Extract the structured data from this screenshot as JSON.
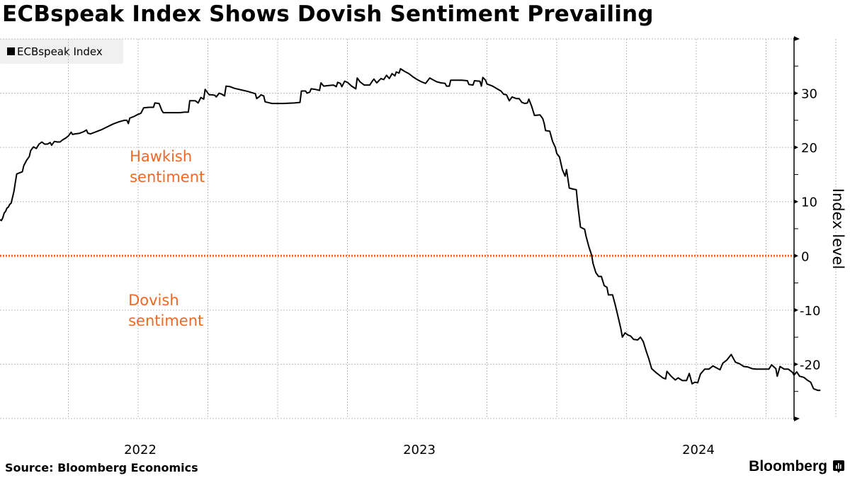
{
  "header": {
    "title": "ECBspeak Index Shows Dovish Sentiment Prevailing"
  },
  "legend": {
    "items": [
      {
        "label": "ECBspeak Index",
        "color": "#000000"
      }
    ]
  },
  "footer": {
    "source": "Source: Bloomberg Economics",
    "brand": "Bloomberg",
    "brand_icon": "bloomberg-terminal-icon"
  },
  "colors": {
    "line": "#000000",
    "zero_line": "#f26822",
    "annotation": "#f26822",
    "grid": "#bdbdbd"
  },
  "chart_data": {
    "type": "line",
    "title": "ECBspeak Index Shows Dovish Sentiment Prevailing",
    "xlabel": "",
    "ylabel": "Index level",
    "x_unit": "year (decimal)",
    "xlim": [
      2021.505,
      2024.79
    ],
    "ylim": [
      -30,
      40
    ],
    "x_ticks": [
      {
        "value": 2022.5,
        "label": "2022",
        "anchor": 2022.0
      },
      {
        "value": 2023.5,
        "label": "2023",
        "anchor": 2023.0
      },
      {
        "value": 2024.5,
        "label": "2024",
        "anchor": 2024.0
      }
    ],
    "x_grid": [
      2021.75,
      2022.0,
      2022.25,
      2022.5,
      2022.75,
      2023.0,
      2023.25,
      2023.5,
      2023.75,
      2024.0,
      2024.25,
      2024.5
    ],
    "y_ticks": [
      {
        "value": 30,
        "label": "30"
      },
      {
        "value": 20,
        "label": "20"
      },
      {
        "value": 10,
        "label": "10"
      },
      {
        "value": 0,
        "label": "0"
      },
      {
        "value": -10,
        "label": "-10"
      },
      {
        "value": -20,
        "label": "-20"
      }
    ],
    "y_minor_ticks": [
      35,
      25,
      15,
      5,
      -5,
      -15,
      -25
    ],
    "grid": true,
    "legend_position": "top-left",
    "reference_lines": [
      {
        "y": 0,
        "style": "dotted",
        "color": "#f26822"
      }
    ],
    "annotations": [
      {
        "lines": [
          "Hawkish",
          "sentiment"
        ],
        "x": 2021.985,
        "y": 15.3
      },
      {
        "lines": [
          "Dovish",
          "sentiment"
        ],
        "x": 2021.98,
        "y": -11.2
      }
    ],
    "series": [
      {
        "name": "ECBspeak Index",
        "points": [
          [
            2021.505,
            6.7
          ],
          [
            2021.51,
            6.5
          ],
          [
            2021.515,
            7.0
          ],
          [
            2021.52,
            7.9
          ],
          [
            2021.525,
            8.2
          ],
          [
            2021.53,
            8.8
          ],
          [
            2021.535,
            9.0
          ],
          [
            2021.54,
            9.5
          ],
          [
            2021.545,
            9.7
          ],
          [
            2021.55,
            10.8
          ],
          [
            2021.555,
            11.9
          ],
          [
            2021.56,
            13.5
          ],
          [
            2021.565,
            15.1
          ],
          [
            2021.575,
            15.3
          ],
          [
            2021.585,
            15.5
          ],
          [
            2021.59,
            16.6
          ],
          [
            2021.6,
            17.6
          ],
          [
            2021.61,
            18.3
          ],
          [
            2021.615,
            19.4
          ],
          [
            2021.625,
            20.1
          ],
          [
            2021.635,
            19.8
          ],
          [
            2021.645,
            20.6
          ],
          [
            2021.655,
            21.0
          ],
          [
            2021.665,
            20.6
          ],
          [
            2021.675,
            20.6
          ],
          [
            2021.685,
            20.9
          ],
          [
            2021.69,
            20.4
          ],
          [
            2021.7,
            21.1
          ],
          [
            2021.71,
            21.0
          ],
          [
            2021.72,
            21.0
          ],
          [
            2021.73,
            21.4
          ],
          [
            2021.74,
            21.7
          ],
          [
            2021.75,
            22.1
          ],
          [
            2021.76,
            22.8
          ],
          [
            2021.765,
            22.4
          ],
          [
            2021.775,
            22.5
          ],
          [
            2021.79,
            22.6
          ],
          [
            2021.805,
            22.9
          ],
          [
            2021.815,
            23.2
          ],
          [
            2021.82,
            22.6
          ],
          [
            2021.83,
            22.5
          ],
          [
            2021.85,
            22.9
          ],
          [
            2021.87,
            23.3
          ],
          [
            2021.89,
            23.8
          ],
          [
            2021.91,
            24.3
          ],
          [
            2021.93,
            24.7
          ],
          [
            2021.95,
            25.0
          ],
          [
            2021.96,
            25.0
          ],
          [
            2021.965,
            24.4
          ],
          [
            2021.97,
            25.4
          ],
          [
            2021.985,
            25.7
          ],
          [
            2022.0,
            26.1
          ],
          [
            2022.01,
            26.3
          ],
          [
            2022.015,
            26.8
          ],
          [
            2022.02,
            27.3
          ],
          [
            2022.04,
            27.4
          ],
          [
            2022.055,
            27.4
          ],
          [
            2022.06,
            28.2
          ],
          [
            2022.075,
            28.1
          ],
          [
            2022.085,
            26.8
          ],
          [
            2022.09,
            26.4
          ],
          [
            2022.12,
            26.4
          ],
          [
            2022.15,
            26.4
          ],
          [
            2022.165,
            26.5
          ],
          [
            2022.18,
            26.5
          ],
          [
            2022.185,
            28.6
          ],
          [
            2022.205,
            28.6
          ],
          [
            2022.215,
            28.2
          ],
          [
            2022.225,
            29.2
          ],
          [
            2022.235,
            28.9
          ],
          [
            2022.24,
            30.7
          ],
          [
            2022.25,
            30.0
          ],
          [
            2022.255,
            29.7
          ],
          [
            2022.265,
            29.7
          ],
          [
            2022.275,
            29.6
          ],
          [
            2022.28,
            29.3
          ],
          [
            2022.29,
            30.0
          ],
          [
            2022.3,
            29.8
          ],
          [
            2022.31,
            29.5
          ],
          [
            2022.315,
            31.3
          ],
          [
            2022.33,
            31.2
          ],
          [
            2022.345,
            30.9
          ],
          [
            2022.37,
            30.6
          ],
          [
            2022.395,
            30.3
          ],
          [
            2022.42,
            29.9
          ],
          [
            2022.425,
            29.0
          ],
          [
            2022.435,
            29.4
          ],
          [
            2022.44,
            29.7
          ],
          [
            2022.45,
            29.5
          ],
          [
            2022.455,
            28.4
          ],
          [
            2022.48,
            28.1
          ],
          [
            2022.52,
            28.1
          ],
          [
            2022.56,
            28.2
          ],
          [
            2022.58,
            28.3
          ],
          [
            2022.585,
            30.4
          ],
          [
            2022.6,
            30.4
          ],
          [
            2022.605,
            30.0
          ],
          [
            2022.615,
            30.2
          ],
          [
            2022.62,
            30.8
          ],
          [
            2022.635,
            30.7
          ],
          [
            2022.65,
            30.5
          ],
          [
            2022.655,
            31.9
          ],
          [
            2022.665,
            31.3
          ],
          [
            2022.68,
            31.4
          ],
          [
            2022.7,
            31.5
          ],
          [
            2022.71,
            31.2
          ],
          [
            2022.715,
            32.0
          ],
          [
            2022.725,
            31.8
          ],
          [
            2022.73,
            31.2
          ],
          [
            2022.74,
            32.2
          ],
          [
            2022.75,
            32.0
          ],
          [
            2022.765,
            31.3
          ],
          [
            2022.78,
            30.8
          ],
          [
            2022.785,
            32.8
          ],
          [
            2022.795,
            32.1
          ],
          [
            2022.81,
            31.5
          ],
          [
            2022.83,
            31.5
          ],
          [
            2022.84,
            32.3
          ],
          [
            2022.845,
            32.6
          ],
          [
            2022.855,
            31.9
          ],
          [
            2022.87,
            32.7
          ],
          [
            2022.88,
            32.5
          ],
          [
            2022.89,
            33.3
          ],
          [
            2022.9,
            32.7
          ],
          [
            2022.91,
            33.6
          ],
          [
            2022.92,
            33.2
          ],
          [
            2022.925,
            33.9
          ],
          [
            2022.935,
            33.7
          ],
          [
            2022.94,
            34.5
          ],
          [
            2022.955,
            34.0
          ],
          [
            2022.97,
            33.6
          ],
          [
            2022.985,
            33.0
          ],
          [
            2023.0,
            32.5
          ],
          [
            2023.015,
            32.1
          ],
          [
            2023.03,
            31.8
          ],
          [
            2023.045,
            32.8
          ],
          [
            2023.055,
            32.5
          ],
          [
            2023.07,
            32.1
          ],
          [
            2023.085,
            31.9
          ],
          [
            2023.1,
            31.8
          ],
          [
            2023.105,
            31.3
          ],
          [
            2023.115,
            31.3
          ],
          [
            2023.12,
            32.4
          ],
          [
            2023.16,
            32.4
          ],
          [
            2023.18,
            32.3
          ],
          [
            2023.185,
            31.6
          ],
          [
            2023.2,
            31.5
          ],
          [
            2023.205,
            32.3
          ],
          [
            2023.225,
            32.2
          ],
          [
            2023.23,
            31.3
          ],
          [
            2023.235,
            32.9
          ],
          [
            2023.245,
            32.4
          ],
          [
            2023.25,
            31.7
          ],
          [
            2023.27,
            31.3
          ],
          [
            2023.29,
            30.7
          ],
          [
            2023.3,
            30.4
          ],
          [
            2023.31,
            29.8
          ],
          [
            2023.32,
            29.7
          ],
          [
            2023.33,
            28.6
          ],
          [
            2023.34,
            29.3
          ],
          [
            2023.355,
            29.0
          ],
          [
            2023.365,
            29.0
          ],
          [
            2023.375,
            28.3
          ],
          [
            2023.385,
            28.1
          ],
          [
            2023.395,
            28.2
          ],
          [
            2023.4,
            28.9
          ],
          [
            2023.41,
            27.6
          ],
          [
            2023.42,
            25.9
          ],
          [
            2023.44,
            26.0
          ],
          [
            2023.45,
            25.3
          ],
          [
            2023.455,
            24.4
          ],
          [
            2023.46,
            23.1
          ],
          [
            2023.475,
            23.0
          ],
          [
            2023.485,
            21.1
          ],
          [
            2023.495,
            20.0
          ],
          [
            2023.5,
            18.9
          ],
          [
            2023.51,
            18.2
          ],
          [
            2023.52,
            15.9
          ],
          [
            2023.53,
            14.7
          ],
          [
            2023.535,
            15.9
          ],
          [
            2023.545,
            12.5
          ],
          [
            2023.56,
            12.3
          ],
          [
            2023.57,
            12.2
          ],
          [
            2023.575,
            9.5
          ],
          [
            2023.585,
            5.3
          ],
          [
            2023.6,
            4.9
          ],
          [
            2023.605,
            3.6
          ],
          [
            2023.615,
            1.7
          ],
          [
            2023.625,
            0.1
          ],
          [
            2023.63,
            -1.4
          ],
          [
            2023.64,
            -3.1
          ],
          [
            2023.65,
            -3.8
          ],
          [
            2023.66,
            -3.8
          ],
          [
            2023.67,
            -5.5
          ],
          [
            2023.68,
            -5.8
          ],
          [
            2023.685,
            -7.2
          ],
          [
            2023.7,
            -7.2
          ],
          [
            2023.71,
            -9.1
          ],
          [
            2023.72,
            -11.3
          ],
          [
            2023.73,
            -13.5
          ],
          [
            2023.735,
            -15.0
          ],
          [
            2023.745,
            -14.2
          ],
          [
            2023.755,
            -14.6
          ],
          [
            2023.765,
            -14.8
          ],
          [
            2023.775,
            -15.4
          ],
          [
            2023.79,
            -15.5
          ],
          [
            2023.8,
            -15.0
          ],
          [
            2023.81,
            -15.8
          ],
          [
            2023.82,
            -17.5
          ],
          [
            2023.83,
            -19.0
          ],
          [
            2023.84,
            -20.8
          ],
          [
            2023.855,
            -21.5
          ],
          [
            2023.87,
            -22.1
          ],
          [
            2023.88,
            -22.5
          ],
          [
            2023.89,
            -22.7
          ],
          [
            2023.895,
            -21.3
          ],
          [
            2023.91,
            -22.2
          ],
          [
            2023.925,
            -22.9
          ],
          [
            2023.935,
            -22.5
          ],
          [
            2023.95,
            -23.0
          ],
          [
            2023.965,
            -23.0
          ],
          [
            2023.975,
            -21.7
          ],
          [
            2023.985,
            -23.6
          ],
          [
            2023.995,
            -23.3
          ],
          [
            2024.005,
            -23.4
          ],
          [
            2024.015,
            -21.8
          ],
          [
            2024.03,
            -20.9
          ],
          [
            2024.045,
            -20.9
          ],
          [
            2024.06,
            -20.3
          ],
          [
            2024.07,
            -20.6
          ],
          [
            2024.085,
            -21.0
          ],
          [
            2024.095,
            -19.8
          ],
          [
            2024.11,
            -19.2
          ],
          [
            2024.125,
            -18.2
          ],
          [
            2024.14,
            -19.6
          ],
          [
            2024.155,
            -19.9
          ],
          [
            2024.17,
            -20.4
          ],
          [
            2024.185,
            -20.5
          ],
          [
            2024.2,
            -20.8
          ],
          [
            2024.215,
            -20.9
          ],
          [
            2024.23,
            -20.9
          ],
          [
            2024.26,
            -20.9
          ],
          [
            2024.27,
            -20.1
          ],
          [
            2024.285,
            -20.8
          ],
          [
            2024.29,
            -22.2
          ],
          [
            2024.3,
            -20.4
          ],
          [
            2024.315,
            -20.9
          ],
          [
            2024.33,
            -20.9
          ],
          [
            2024.345,
            -21.5
          ],
          [
            2024.35,
            -22.0
          ],
          [
            2024.36,
            -21.4
          ],
          [
            2024.37,
            -22.2
          ],
          [
            2024.385,
            -22.4
          ],
          [
            2024.4,
            -23.0
          ],
          [
            2024.41,
            -23.3
          ],
          [
            2024.42,
            -24.5
          ],
          [
            2024.435,
            -24.8
          ],
          [
            2024.445,
            -24.8
          ]
        ]
      }
    ]
  }
}
